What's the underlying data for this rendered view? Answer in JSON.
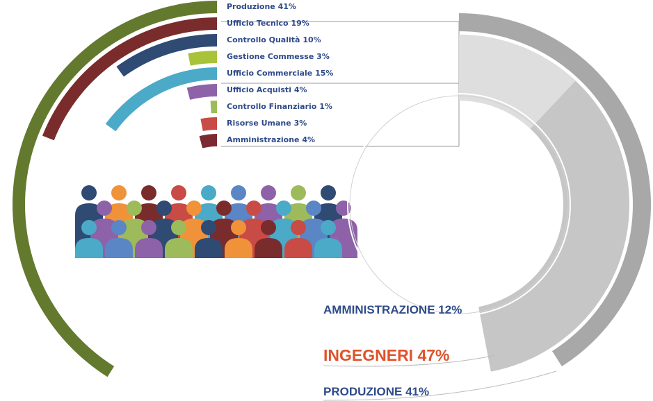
{
  "chart_data": [
    {
      "type": "radial_bar",
      "categories": [
        "Produzione",
        "Ufficio Tecnico",
        "Controllo Qualità",
        "Gestione Commesse",
        "Ufficio Commerciale",
        "Ufficio Acquisti",
        "Controllo Finanziario",
        "Risorse Umane",
        "Amministrazione"
      ],
      "values": [
        41,
        19,
        10,
        3,
        15,
        4,
        1,
        3,
        4
      ],
      "value_labels": [
        "41%",
        "19%",
        "10%",
        "3%",
        "15%",
        "4%",
        "1%",
        "3%",
        "4%"
      ],
      "colors": [
        "#637a2e",
        "#7a2c2c",
        "#2f4a73",
        "#a8c23a",
        "#4aaac8",
        "#8e62a8",
        "#9dbb5a",
        "#c94b45",
        "#7a2a30"
      ]
    },
    {
      "type": "semi_donut",
      "categories": [
        "AMMINISTRAZIONE",
        "INGEGNERI",
        "PRODUZIONE"
      ],
      "values": [
        12,
        47,
        41
      ],
      "value_labels": [
        "12%",
        "47%",
        "41%"
      ],
      "colors": [
        "#dedede",
        "#c6c6c6",
        "#a8a8a8"
      ]
    }
  ]
}
